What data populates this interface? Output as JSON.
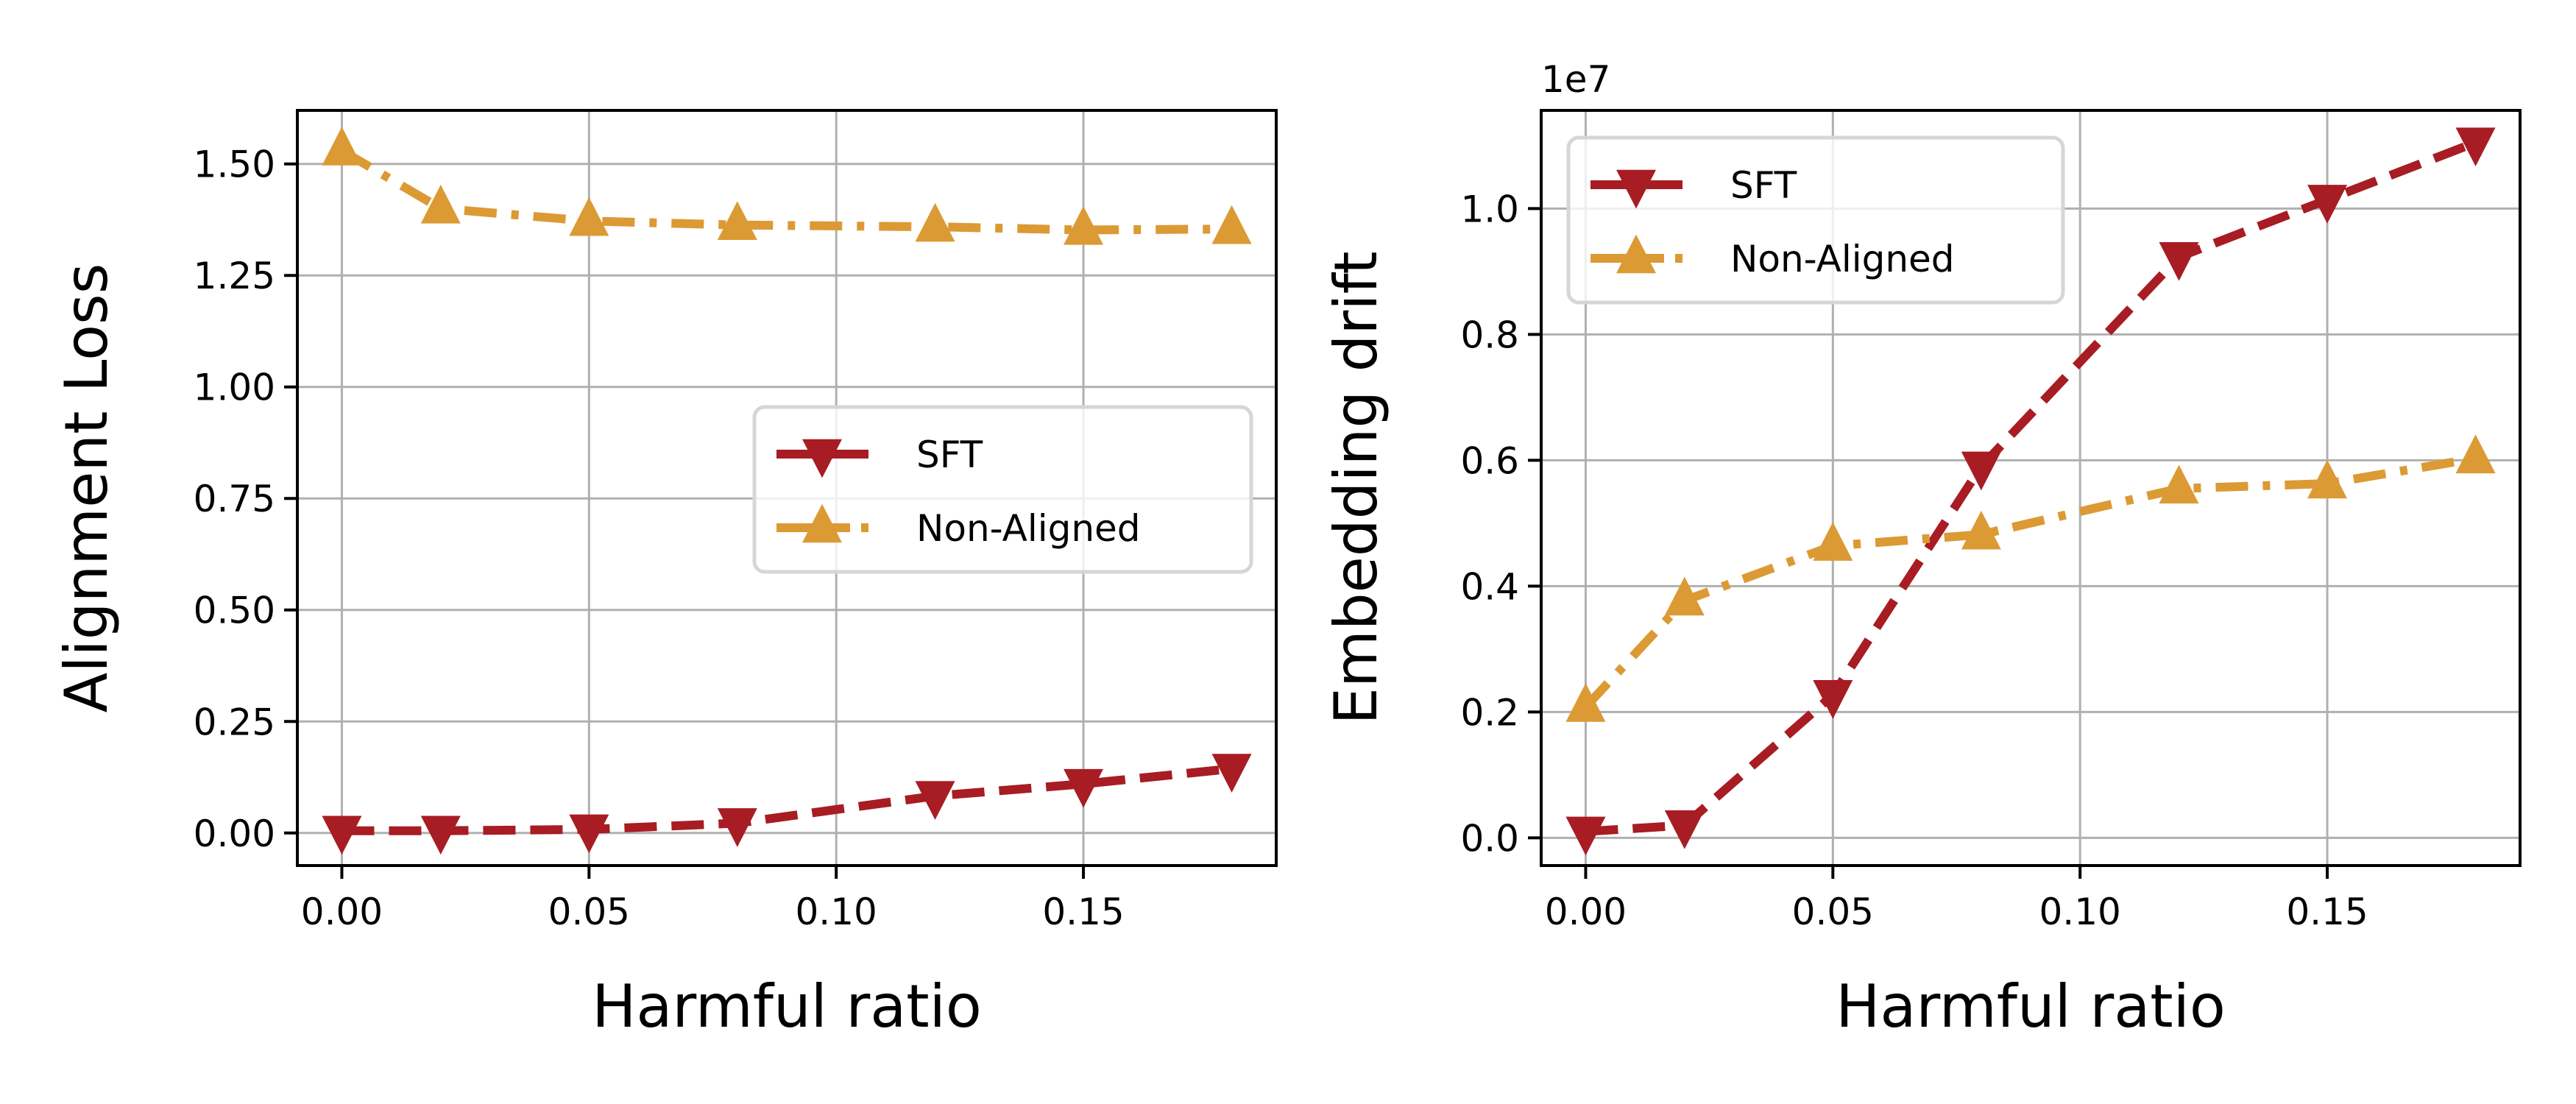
{
  "colors": {
    "SFT": "#a81c23",
    "Non-Aligned": "#dc9a35",
    "grid": "#b0b0b0"
  },
  "chart_data": [
    {
      "type": "line",
      "xlabel": "Harmful ratio",
      "ylabel": "Alignment Loss",
      "x": [
        0.0,
        0.02,
        0.05,
        0.08,
        0.12,
        0.15,
        0.18
      ],
      "xlim": [
        -0.009,
        0.189
      ],
      "ylim": [
        -0.073,
        1.62
      ],
      "xticks": [
        "0.00",
        "0.05",
        "0.10",
        "0.15"
      ],
      "xtick_values": [
        0.0,
        0.05,
        0.1,
        0.15
      ],
      "yticks": [
        "0.00",
        "0.25",
        "0.50",
        "0.75",
        "1.00",
        "1.25",
        "1.50"
      ],
      "ytick_values": [
        0,
        0.25,
        0.5,
        0.75,
        1.0,
        1.25,
        1.5
      ],
      "grid": true,
      "legend_position": "center-right",
      "series": [
        {
          "name": "SFT",
          "marker": "triangle-down",
          "linestyle": "dashed",
          "values": [
            0.005,
            0.005,
            0.008,
            0.022,
            0.083,
            0.11,
            0.144
          ]
        },
        {
          "name": "Non-Aligned",
          "marker": "triangle-up",
          "linestyle": "dash-dot",
          "values": [
            1.53,
            1.4,
            1.372,
            1.363,
            1.359,
            1.352,
            1.354
          ]
        }
      ]
    },
    {
      "type": "line",
      "xlabel": "Harmful ratio",
      "ylabel": "Embedding drift",
      "offset_label": "1e7",
      "x": [
        0.0,
        0.02,
        0.05,
        0.08,
        0.12,
        0.15,
        0.18
      ],
      "xlim": [
        -0.009,
        0.189
      ],
      "ylim": [
        -0.044,
        1.156
      ],
      "xticks": [
        "0.00",
        "0.05",
        "0.10",
        "0.15"
      ],
      "xtick_values": [
        0.0,
        0.05,
        0.1,
        0.15
      ],
      "yticks": [
        "0.0",
        "0.2",
        "0.4",
        "0.6",
        "0.8",
        "1.0"
      ],
      "ytick_values": [
        0,
        0.2,
        0.4,
        0.6,
        0.8,
        1.0
      ],
      "grid": true,
      "legend_position": "top-left",
      "series": [
        {
          "name": "SFT",
          "marker": "triangle-down",
          "linestyle": "dashed",
          "values": [
            0.01,
            0.02,
            0.227,
            0.59,
            0.923,
            1.014,
            1.105
          ]
        },
        {
          "name": "Non-Aligned",
          "marker": "triangle-up",
          "linestyle": "dash-dot",
          "values": [
            0.208,
            0.377,
            0.464,
            0.482,
            0.555,
            0.563,
            0.603
          ]
        }
      ]
    }
  ]
}
